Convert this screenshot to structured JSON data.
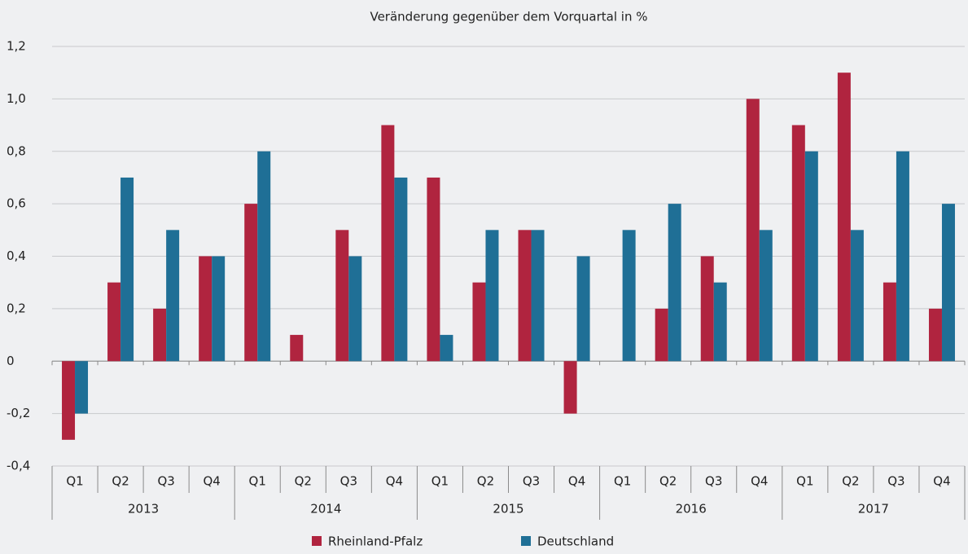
{
  "chart_data": {
    "type": "bar",
    "title": "Veränderung gegenüber dem Vorquartal in %",
    "categories": [
      "Q1",
      "Q2",
      "Q3",
      "Q4",
      "Q1",
      "Q2",
      "Q3",
      "Q4",
      "Q1",
      "Q2",
      "Q3",
      "Q4",
      "Q1",
      "Q2",
      "Q3",
      "Q4",
      "Q1",
      "Q2",
      "Q3",
      "Q4"
    ],
    "groups": [
      "2013",
      "2014",
      "2015",
      "2016",
      "2017"
    ],
    "series": [
      {
        "name": "Rheinland-Pfalz",
        "color": "#b0243f",
        "values": [
          -0.3,
          0.3,
          0.2,
          0.4,
          0.6,
          0.1,
          0.5,
          0.9,
          0.7,
          0.3,
          0.5,
          -0.2,
          0,
          0.2,
          0.4,
          1.0,
          0.9,
          1.1,
          0.3,
          0.2
        ]
      },
      {
        "name": "Deutschland",
        "color": "#1f6f96",
        "values": [
          -0.2,
          0.7,
          0.5,
          0.4,
          0.8,
          0,
          0.4,
          0.7,
          0.1,
          0.5,
          0.5,
          0.4,
          0.5,
          0.6,
          0.3,
          0.5,
          0.8,
          0.5,
          0.8,
          0.6
        ]
      }
    ],
    "ylim": [
      -0.4,
      1.2
    ],
    "yticks": [
      {
        "value": -0.4,
        "label": "-0,4"
      },
      {
        "value": -0.2,
        "label": "-0,2"
      },
      0,
      {
        "value": 0.2,
        "label": "0,2"
      },
      {
        "value": 0.4,
        "label": "0,4"
      },
      {
        "value": 0.6,
        "label": "0,6"
      },
      {
        "value": 0.8,
        "label": "0,8"
      },
      {
        "value": 1.0,
        "label": "1,0"
      },
      {
        "value": 1.2,
        "label": "1,2"
      }
    ],
    "grid": true
  }
}
